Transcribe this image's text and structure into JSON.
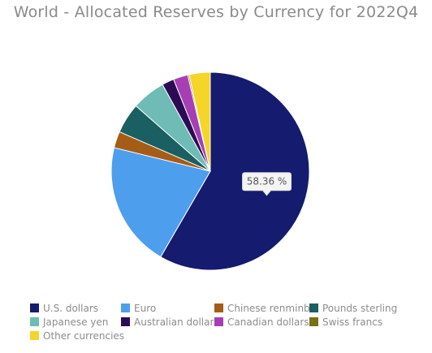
{
  "chart_data": {
    "type": "pie",
    "title": "World - Allocated Reserves by Currency for 2022Q4",
    "categories": [
      "U.S. dollars",
      "Euro",
      "Chinese renminbi",
      "Pounds sterling",
      "Japanese yen",
      "Australian dollars",
      "Canadian dollars",
      "Swiss francs",
      "Other currencies"
    ],
    "values": [
      58.36,
      20.47,
      2.69,
      4.95,
      5.51,
      1.97,
      2.38,
      0.23,
      3.44
    ],
    "colors": [
      "#151b6e",
      "#4e9eee",
      "#a55c16",
      "#1a5f62",
      "#6fbbb5",
      "#2b0c54",
      "#a63fb3",
      "#7a7015",
      "#f5d527"
    ],
    "tooltip": "58.36 %",
    "legend_position": "bottom"
  }
}
